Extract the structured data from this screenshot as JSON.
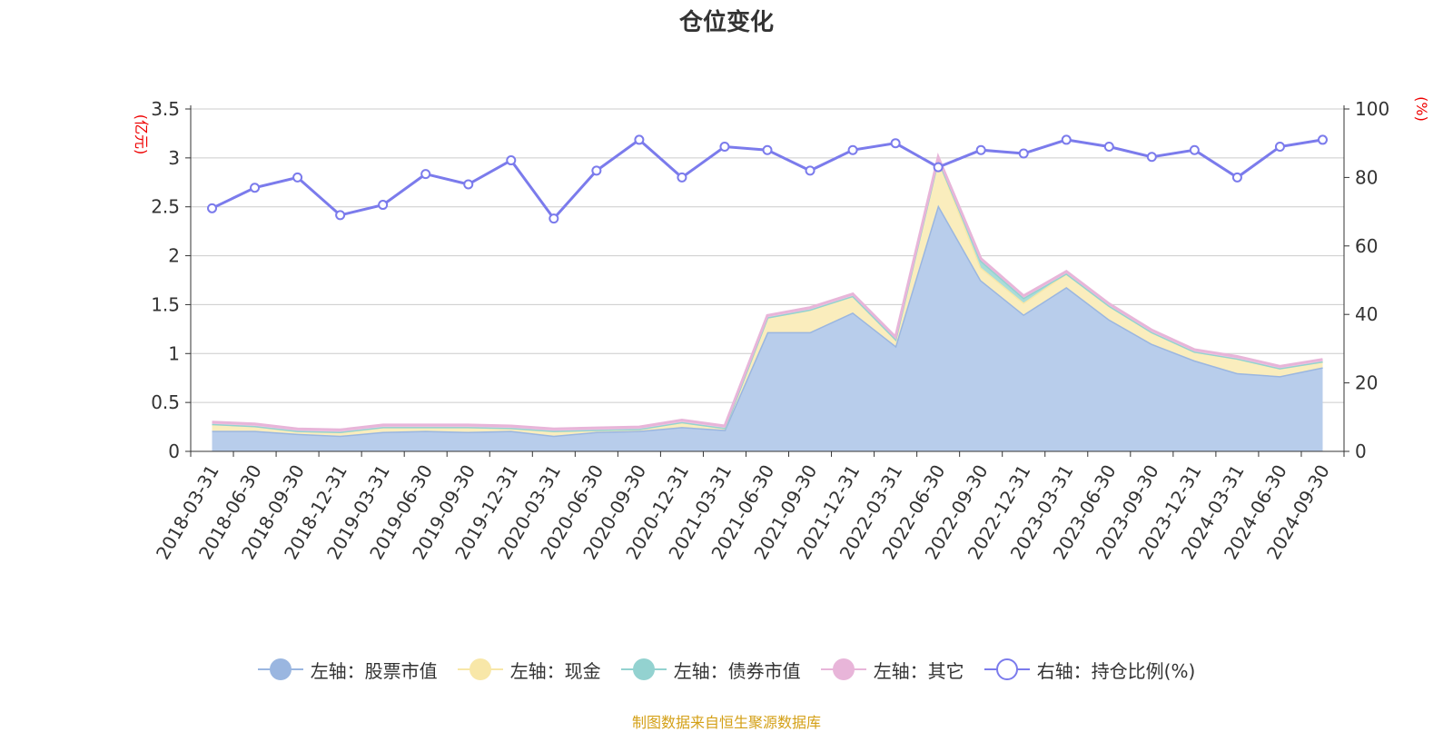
{
  "chart_data": {
    "type": "area",
    "title": "仓位变化",
    "left_axis": {
      "unit": "(亿元)",
      "ylim": [
        0,
        3.5
      ],
      "ticks": [
        0,
        0.5,
        1,
        1.5,
        2,
        2.5,
        3,
        3.5
      ],
      "tick_labels": [
        "0",
        "0.5",
        "1",
        "1.5",
        "2",
        "2.5",
        "3",
        "3.5"
      ]
    },
    "right_axis": {
      "unit": "(%)",
      "ylim": [
        0,
        100
      ],
      "ticks": [
        0,
        20,
        40,
        60,
        80,
        100
      ],
      "tick_labels": [
        "0",
        "20",
        "40",
        "60",
        "80",
        "100"
      ]
    },
    "categories": [
      "2018-03-31",
      "2018-06-30",
      "2018-09-30",
      "2018-12-31",
      "2019-03-31",
      "2019-06-30",
      "2019-09-30",
      "2019-12-31",
      "2020-03-31",
      "2020-06-30",
      "2020-09-30",
      "2020-12-31",
      "2021-03-31",
      "2021-06-30",
      "2021-09-30",
      "2021-12-31",
      "2022-03-31",
      "2022-06-30",
      "2022-09-30",
      "2022-12-31",
      "2023-03-31",
      "2023-06-30",
      "2023-09-30",
      "2023-12-31",
      "2024-03-31",
      "2024-06-30",
      "2024-09-30"
    ],
    "grid": true,
    "legend_position": "bottom",
    "series": [
      {
        "name": "左轴：股票市值",
        "axis": "left",
        "color": "#9ab6e0",
        "fill": "#b8cdeb",
        "values": [
          0.21,
          0.21,
          0.18,
          0.16,
          0.2,
          0.21,
          0.2,
          0.21,
          0.16,
          0.2,
          0.21,
          0.25,
          0.22,
          1.22,
          1.22,
          1.42,
          1.08,
          2.52,
          1.75,
          1.4,
          1.68,
          1.35,
          1.1,
          0.93,
          0.8,
          0.77,
          0.86
        ]
      },
      {
        "name": "左轴：现金",
        "axis": "left",
        "color": "#f8e7a8",
        "fill": "#faedbd",
        "values": [
          0.07,
          0.05,
          0.03,
          0.04,
          0.05,
          0.04,
          0.05,
          0.03,
          0.05,
          0.02,
          0.02,
          0.05,
          0.02,
          0.15,
          0.23,
          0.17,
          0.07,
          0.47,
          0.13,
          0.12,
          0.14,
          0.14,
          0.12,
          0.09,
          0.15,
          0.08,
          0.06
        ]
      },
      {
        "name": "左轴：债券市值",
        "axis": "left",
        "color": "#93d2d0",
        "fill": "#a9dcd9",
        "values": [
          0,
          0,
          0,
          0,
          0,
          0,
          0,
          0,
          0,
          0,
          0,
          0,
          0,
          0,
          0,
          0,
          0,
          0,
          0.07,
          0.05,
          0,
          0,
          0,
          0,
          0,
          0,
          0
        ]
      },
      {
        "name": "左轴：其它",
        "axis": "left",
        "color": "#e8b5d9",
        "fill": "#efc8e3",
        "values": [
          0.02,
          0.02,
          0.02,
          0.02,
          0.02,
          0.02,
          0.02,
          0.02,
          0.02,
          0.02,
          0.02,
          0.02,
          0.02,
          0.02,
          0.02,
          0.02,
          0.02,
          0.02,
          0.02,
          0.02,
          0.02,
          0.02,
          0.02,
          0.02,
          0.02,
          0.02,
          0.02
        ]
      },
      {
        "name": "右轴：持仓比例(%)",
        "axis": "right",
        "color": "#7b7bec",
        "values": [
          71,
          77,
          80,
          69,
          72,
          81,
          78,
          85,
          68,
          82,
          91,
          80,
          89,
          88,
          82,
          88,
          90,
          83,
          88,
          87,
          91,
          89,
          86,
          88,
          80,
          89,
          91
        ]
      }
    ]
  },
  "source_note": "制图数据来自恒生聚源数据库"
}
